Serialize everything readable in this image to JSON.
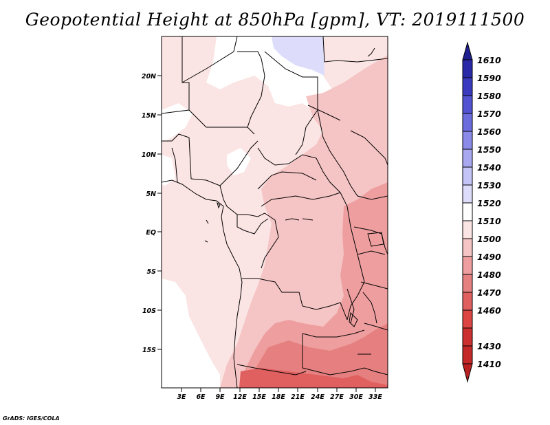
{
  "title": "Geopotential Height at 850hPa [gpm], VT: 2019111500",
  "footer": "GrADS: IGES/COLA",
  "lat_labels": [
    "20N",
    "15N",
    "10N",
    "5N",
    "EQ",
    "5S",
    "10S",
    "15S"
  ],
  "lon_labels": [
    "3E",
    "6E",
    "9E",
    "12E",
    "15E",
    "18E",
    "21E",
    "24E",
    "27E",
    "30E",
    "33E"
  ],
  "colorbar": {
    "levels": [
      "1410",
      "1430",
      "1460",
      "1470",
      "1480",
      "1490",
      "1500",
      "1510",
      "1520",
      "1530",
      "1540",
      "1550",
      "1560",
      "1570",
      "1580",
      "1590",
      "1610"
    ],
    "colors": [
      "#bb2020",
      "#cc3030",
      "#dd4444",
      "#e06060",
      "#e68080",
      "#ee9e9e",
      "#f5c4c4",
      "#fbe4e4",
      "#ffffff",
      "#ddddfb",
      "#c4c4f6",
      "#a8a8f0",
      "#8a8ae8",
      "#6c6cde",
      "#5252d2",
      "#3a3ac0",
      "#2a2aa8",
      "#1f1f90"
    ]
  },
  "colors": {
    "land_base": "#fbe4e4",
    "level_1520_plus": "#ddddfb",
    "level_1510": "#ffffff",
    "level_1490": "#f5c4c4",
    "level_1480": "#ee9e9e",
    "level_1470": "#e68080",
    "level_1460": "#e06060"
  }
}
